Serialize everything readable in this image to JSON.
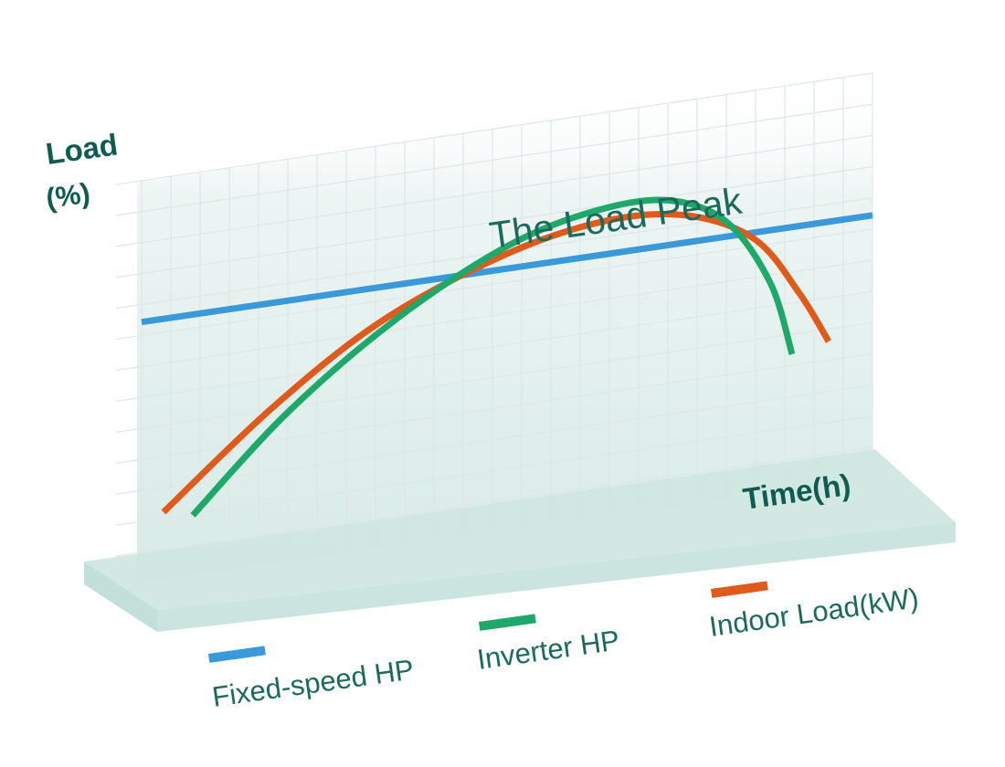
{
  "chart_data": {
    "type": "line",
    "y_label_line1": "Load",
    "y_label_line2": "(%)",
    "x_label": "Time(h)",
    "annotation": "The Load Peak",
    "grid": true,
    "legend_placement": "bottom",
    "series": [
      {
        "name": "Fixed-speed HP",
        "color": "#3a9ad9",
        "points": [
          [
            0.0,
            0.62
          ],
          [
            1.0,
            0.62
          ]
        ]
      },
      {
        "name": "Inverter HP",
        "color": "#1ea86a",
        "points": [
          [
            0.07,
            0.08
          ],
          [
            0.2,
            0.32
          ],
          [
            0.35,
            0.53
          ],
          [
            0.5,
            0.68
          ],
          [
            0.62,
            0.74
          ],
          [
            0.72,
            0.74
          ],
          [
            0.8,
            0.66
          ],
          [
            0.86,
            0.48
          ],
          [
            0.89,
            0.28
          ]
        ]
      },
      {
        "name": "Indoor Load(kW)",
        "color": "#e05a1c",
        "points": [
          [
            0.03,
            0.1
          ],
          [
            0.18,
            0.34
          ],
          [
            0.33,
            0.53
          ],
          [
            0.5,
            0.66
          ],
          [
            0.64,
            0.71
          ],
          [
            0.75,
            0.69
          ],
          [
            0.84,
            0.6
          ],
          [
            0.9,
            0.44
          ],
          [
            0.94,
            0.3
          ]
        ]
      }
    ]
  }
}
